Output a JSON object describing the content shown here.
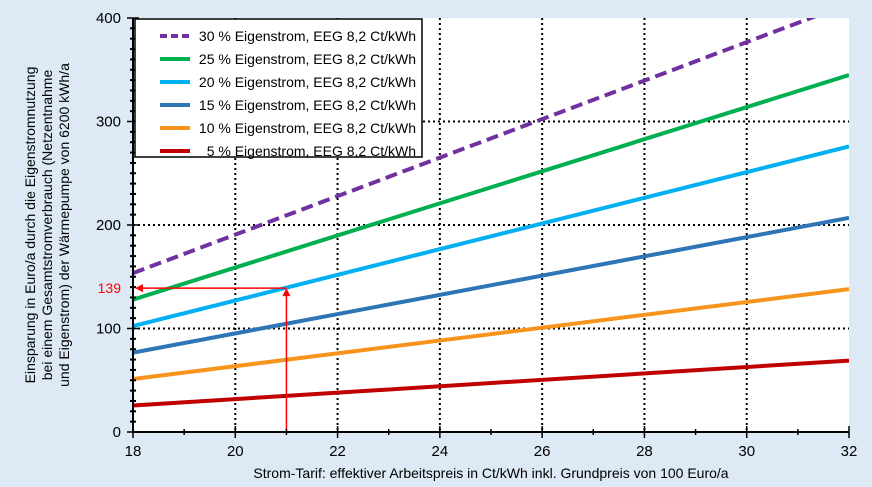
{
  "chart_data": {
    "type": "line",
    "title": "",
    "xlabel": "Strom-Tarif: effektiver Arbeitspreis in Ct/kWh inkl. Grundpreis von 100 Euro/a",
    "ylabel_lines": [
      "Einsparung in Euro/a durch die Eigenstromnutzung",
      "bei einem Gesamtstromverbrauch (Netzentnahme",
      "und Eigenstrom) der Wärmepumpe von 6200 kWh/a"
    ],
    "xlim": [
      18,
      32
    ],
    "ylim": [
      0,
      400
    ],
    "xticks": [
      18,
      20,
      22,
      24,
      26,
      28,
      30,
      32
    ],
    "yticks": [
      0,
      100,
      200,
      300,
      400
    ],
    "grid": true,
    "legend_placement": "top-left",
    "series": [
      {
        "name": "30 % Eigenstrom, EEG 8,2 Ct/kWh",
        "color": "#7030a0",
        "dashed": true,
        "x": [
          18,
          32
        ],
        "y": [
          153.5,
          413.9
        ]
      },
      {
        "name": "25 % Eigenstrom, EEG 8,2 Ct/kWh",
        "color": "#00b050",
        "dashed": false,
        "x": [
          18,
          32
        ],
        "y": [
          127.9,
          344.9
        ]
      },
      {
        "name": "20 % Eigenstrom, EEG 8,2 Ct/kWh",
        "color": "#00b0f0",
        "dashed": false,
        "x": [
          18,
          32
        ],
        "y": [
          102.3,
          275.9
        ]
      },
      {
        "name": "15 % Eigenstrom, EEG 8,2 Ct/kWh",
        "color": "#2e75b6",
        "dashed": false,
        "x": [
          18,
          32
        ],
        "y": [
          76.7,
          206.9
        ]
      },
      {
        "name": "10 % Eigenstrom, EEG 8,2 Ct/kWh",
        "color": "#f7941d",
        "dashed": false,
        "x": [
          18,
          32
        ],
        "y": [
          51.2,
          138.0
        ]
      },
      {
        "name": " 5 % Eigenstrom, EEG 8,2 Ct/kWh",
        "color": "#c00000",
        "dashed": false,
        "x": [
          18,
          32
        ],
        "y": [
          25.6,
          69.0
        ]
      }
    ],
    "annotation": {
      "x": 21,
      "y": 139,
      "label": "139",
      "color": "#ff0000"
    }
  }
}
